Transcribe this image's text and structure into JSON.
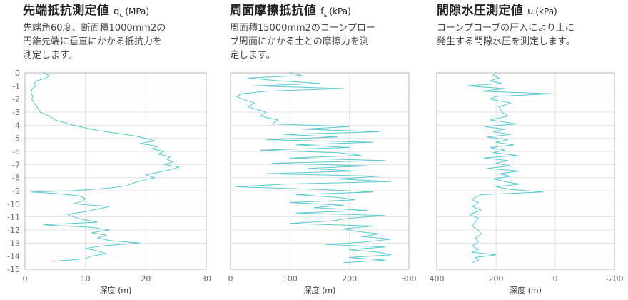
{
  "panels": [
    {
      "title": "先端抵抗測定値",
      "symbol": "q",
      "symbol_sub": "c",
      "unit": "(MPa)",
      "description": [
        "先端角60度、断面積1000mm2の",
        "円錐先端に垂直にかかる抵抗力を",
        "測定します。"
      ]
    },
    {
      "title": "周面摩擦抵抗値",
      "symbol": "f",
      "symbol_sub": "s",
      "unit": "(kPa)",
      "description": [
        "周面積15000mm2のコーンプロー",
        "ブ周面にかかる土との摩擦力を測",
        "定します。"
      ]
    },
    {
      "title": "間隙水圧測定値",
      "symbol": "u",
      "symbol_sub": "",
      "unit": "(kPa)",
      "description": [
        "コーンプローブの圧入により土に",
        "発生する間隙水圧を測定します。"
      ]
    }
  ],
  "colors": {
    "line": "#5cc8cc",
    "grid": "#e2e2e2",
    "frame": "#b5b5b5"
  },
  "chart_data": [
    {
      "type": "line",
      "xlim": [
        0,
        30
      ],
      "xticks": [
        "0",
        "10",
        "20",
        "30"
      ],
      "ylim": [
        -15,
        0
      ],
      "yticks": [
        "0",
        "-1",
        "-2",
        "-3",
        "-4",
        "-5",
        "-6",
        "-7",
        "-8",
        "-9",
        "-10",
        "-11",
        "-12",
        "-13",
        "-14",
        "-15"
      ],
      "xlabel": "深度 (m)",
      "series": [
        {
          "depth": [
            0,
            -0.2,
            -0.4,
            -0.6,
            -0.8,
            -1.0,
            -1.2,
            -1.5,
            -1.8,
            -2.0,
            -2.3,
            -2.6,
            -3.0,
            -3.3,
            -3.6,
            -4.0,
            -4.2,
            -4.4,
            -4.6,
            -4.8,
            -5.0,
            -5.2,
            -5.4,
            -5.6,
            -5.8,
            -6.0,
            -6.2,
            -6.4,
            -6.6,
            -6.8,
            -7.0,
            -7.2,
            -7.4,
            -7.6,
            -7.8,
            -8.0,
            -8.2,
            -8.4,
            -8.6,
            -8.8,
            -9.0,
            -9.1,
            -9.2,
            -9.4,
            -9.6,
            -9.8,
            -10.0,
            -10.2,
            -10.4,
            -10.6,
            -10.8,
            -11.0,
            -11.2,
            -11.4,
            -11.6,
            -11.8,
            -12.0,
            -12.2,
            -12.4,
            -12.6,
            -12.8,
            -13.0,
            -13.2,
            -13.4,
            -13.6,
            -13.8,
            -14.0,
            -14.2,
            -14.4
          ],
          "value": [
            3.0,
            4.0,
            3.5,
            2.0,
            1.5,
            1.8,
            1.2,
            1.0,
            1.3,
            1.1,
            1.5,
            2.0,
            2.5,
            4.0,
            5.0,
            8.0,
            10.0,
            12.0,
            15.0,
            18.0,
            20.0,
            21.5,
            19.0,
            22.0,
            21.0,
            23.0,
            22.0,
            24.0,
            23.5,
            24.5,
            23.0,
            25.5,
            24.0,
            22.0,
            20.0,
            21.5,
            19.5,
            18.0,
            17.0,
            14.0,
            8.0,
            1.0,
            5.0,
            9.0,
            10.0,
            9.5,
            8.0,
            14.0,
            12.0,
            10.0,
            7.0,
            8.0,
            9.5,
            12.0,
            3.0,
            11.0,
            14.0,
            11.0,
            13.5,
            12.0,
            14.0,
            19.0,
            13.0,
            10.0,
            12.0,
            13.5,
            11.0,
            10.0,
            4.5
          ]
        }
      ]
    },
    {
      "type": "line",
      "xlim": [
        0,
        300
      ],
      "xticks": [
        "0",
        "100",
        "200",
        "300"
      ],
      "ylim": [
        -15,
        0
      ],
      "yticks": [
        "0",
        "-1",
        "-2",
        "-3",
        "-4",
        "-5",
        "-6",
        "-7",
        "-8",
        "-9",
        "-10",
        "-11",
        "-12",
        "-13",
        "-14",
        "-15"
      ],
      "xlabel": "深度 (m)",
      "series": [
        {
          "depth": [
            0,
            -0.2,
            -0.4,
            -0.6,
            -0.8,
            -1.0,
            -1.2,
            -1.4,
            -1.6,
            -1.8,
            -2.0,
            -2.3,
            -2.6,
            -3.0,
            -3.3,
            -3.6,
            -3.9,
            -4.1,
            -4.3,
            -4.5,
            -4.7,
            -4.9,
            -5.1,
            -5.3,
            -5.5,
            -5.7,
            -5.9,
            -6.1,
            -6.3,
            -6.5,
            -6.7,
            -6.9,
            -7.1,
            -7.3,
            -7.5,
            -7.7,
            -7.9,
            -8.1,
            -8.3,
            -8.5,
            -8.7,
            -8.9,
            -9.1,
            -9.3,
            -9.5,
            -9.7,
            -9.9,
            -10.1,
            -10.3,
            -10.5,
            -10.7,
            -10.9,
            -11.1,
            -11.3,
            -11.5,
            -11.7,
            -11.9,
            -12.1,
            -12.3,
            -12.5,
            -12.7,
            -12.9,
            -13.1,
            -13.3,
            -13.5,
            -13.7,
            -13.9,
            -14.1,
            -14.3,
            -14.5
          ],
          "value": [
            100,
            120,
            30,
            80,
            150,
            40,
            190,
            60,
            20,
            10,
            20,
            40,
            30,
            60,
            50,
            80,
            70,
            200,
            120,
            250,
            90,
            180,
            60,
            240,
            110,
            200,
            50,
            180,
            220,
            100,
            260,
            70,
            230,
            130,
            210,
            60,
            250,
            180,
            270,
            90,
            10,
            150,
            240,
            110,
            180,
            210,
            100,
            190,
            140,
            230,
            110,
            260,
            200,
            170,
            100,
            240,
            190,
            210,
            250,
            220,
            270,
            230,
            160,
            260,
            200,
            250,
            270,
            200,
            260,
            190
          ]
        }
      ]
    },
    {
      "type": "line",
      "xlim": [
        400,
        -200
      ],
      "xticks": [
        "400",
        "200",
        "0",
        "-200"
      ],
      "ylim": [
        -15,
        0
      ],
      "yticks": [
        "0",
        "-1",
        "-2",
        "-3",
        "-4",
        "-5",
        "-6",
        "-7",
        "-8",
        "-9",
        "-10",
        "-11",
        "-12",
        "-13",
        "-14",
        "-15"
      ],
      "xlabel": "深度 (m)",
      "series": [
        {
          "depth": [
            0,
            -0.2,
            -0.4,
            -0.6,
            -0.8,
            -1.0,
            -1.2,
            -1.4,
            -1.6,
            -1.8,
            -2.0,
            -2.3,
            -2.6,
            -3.0,
            -3.3,
            -3.6,
            -3.9,
            -4.1,
            -4.3,
            -4.5,
            -4.7,
            -4.9,
            -5.1,
            -5.3,
            -5.5,
            -5.7,
            -5.9,
            -6.1,
            -6.3,
            -6.5,
            -6.7,
            -6.9,
            -7.1,
            -7.3,
            -7.5,
            -7.7,
            -7.9,
            -8.1,
            -8.3,
            -8.5,
            -8.7,
            -8.9,
            -9.1,
            -9.3,
            -9.5,
            -9.7,
            -9.9,
            -10.2,
            -10.5,
            -10.8,
            -11.1,
            -11.4,
            -11.7,
            -12.0,
            -12.3,
            -12.6,
            -12.9,
            -13.2,
            -13.5,
            -13.7,
            -13.9,
            -14.1,
            -14.3,
            -14.5
          ],
          "value": [
            200,
            210,
            190,
            220,
            180,
            300,
            170,
            250,
            10,
            200,
            220,
            150,
            190,
            180,
            160,
            220,
            130,
            240,
            170,
            210,
            150,
            230,
            160,
            200,
            140,
            220,
            170,
            210,
            130,
            240,
            160,
            200,
            150,
            230,
            120,
            190,
            150,
            210,
            170,
            120,
            200,
            150,
            40,
            250,
            270,
            280,
            260,
            280,
            250,
            290,
            260,
            270,
            280,
            260,
            250,
            270,
            260,
            280,
            260,
            280,
            200,
            270,
            260,
            280
          ]
        }
      ]
    }
  ]
}
